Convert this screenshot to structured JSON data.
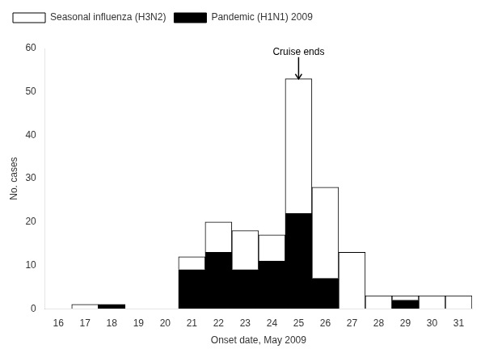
{
  "chart_data": {
    "type": "bar",
    "stacked": true,
    "x_label": "Onset date, May 2009",
    "y_label": "No. cases",
    "categories": [
      16,
      17,
      18,
      19,
      20,
      21,
      22,
      23,
      24,
      25,
      26,
      27,
      28,
      29,
      30,
      31
    ],
    "series": [
      {
        "name": "Pandemic (H1N1) 2009",
        "color": "#000000",
        "values": [
          0,
          0,
          1,
          0,
          0,
          9,
          13,
          9,
          11,
          22,
          7,
          0,
          0,
          2,
          0,
          0
        ]
      },
      {
        "name": "Seasonal influenza (H3N2)",
        "color": "#ffffff",
        "values": [
          0,
          1,
          0,
          0,
          0,
          3,
          7,
          9,
          6,
          31,
          21,
          13,
          3,
          1,
          3,
          3
        ]
      }
    ],
    "ylim": [
      0,
      60
    ],
    "yticks": [
      0,
      10,
      20,
      30,
      40,
      50,
      60
    ],
    "grid": false,
    "legend": "upper left",
    "annotations": [
      {
        "text": "Cruise ends",
        "x": 25,
        "y": 58,
        "arrow_y": 53
      }
    ]
  }
}
